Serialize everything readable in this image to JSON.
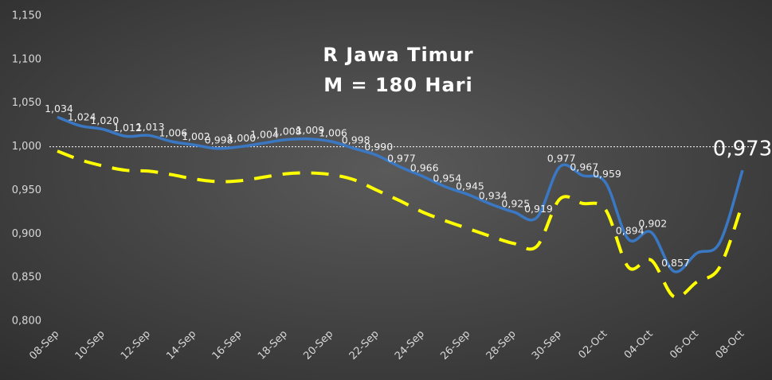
{
  "chart_data": {
    "type": "line",
    "title": [
      "R Jawa Timur",
      "M = 180 Hari"
    ],
    "categories": [
      "08-Sep",
      null,
      "10-Sep",
      null,
      "12-Sep",
      null,
      "14-Sep",
      null,
      "16-Sep",
      null,
      "18-Sep",
      null,
      "20-Sep",
      null,
      "22-Sep",
      null,
      "24-Sep",
      null,
      "26-Sep",
      null,
      "28-Sep",
      null,
      "30-Sep",
      null,
      "02-Oct",
      null,
      "04-Oct",
      null,
      "06-Oct",
      null,
      "08-Oct"
    ],
    "series": [
      {
        "color": "#3a78c4",
        "style": "solid",
        "values": [
          1.034,
          1.024,
          1.02,
          1.012,
          1.013,
          1.006,
          1.002,
          0.998,
          1.0,
          1.004,
          1.008,
          1.009,
          1.006,
          0.998,
          0.99,
          0.977,
          0.966,
          0.954,
          0.945,
          0.934,
          0.925,
          0.919,
          0.977,
          0.967,
          0.959,
          0.894,
          0.902,
          0.857,
          0.878,
          0.89,
          0.973
        ],
        "value_labels": [
          "1,034",
          "1,024",
          "1,020",
          "1,012",
          "1,013",
          "1,006",
          "1,002",
          "0,998",
          "1,000",
          "1,004",
          "1,008",
          "1,009",
          "1,006",
          "0,998",
          "0,990",
          "0,977",
          "0,966",
          "0,954",
          "0,945",
          "0,934",
          "0,925",
          "0,919",
          "0,977",
          "0,967",
          "0,959",
          "0,894",
          "0,902",
          "0,857",
          null,
          null,
          "0,973"
        ]
      },
      {
        "color": "#ffff00",
        "style": "dashed",
        "values": [
          0.995,
          0.985,
          0.978,
          0.973,
          0.972,
          0.968,
          0.963,
          0.96,
          0.961,
          0.965,
          0.969,
          0.97,
          0.968,
          0.962,
          0.95,
          0.938,
          0.925,
          0.915,
          0.906,
          0.897,
          0.889,
          0.886,
          0.94,
          0.935,
          0.928,
          0.862,
          0.87,
          0.828,
          0.845,
          0.862,
          0.935
        ]
      }
    ],
    "ylim": [
      0.8,
      1.15
    ],
    "yticks": [
      {
        "value": 0.8,
        "label": "0,800"
      },
      {
        "value": 0.85,
        "label": "0,850"
      },
      {
        "value": 0.9,
        "label": "0,900"
      },
      {
        "value": 0.95,
        "label": "0,950"
      },
      {
        "value": 1.0,
        "label": "1,000"
      },
      {
        "value": 1.05,
        "label": "1,050"
      },
      {
        "value": 1.1,
        "label": "1,100"
      },
      {
        "value": 1.15,
        "label": "1,150"
      }
    ],
    "reference_line": 1.0
  }
}
